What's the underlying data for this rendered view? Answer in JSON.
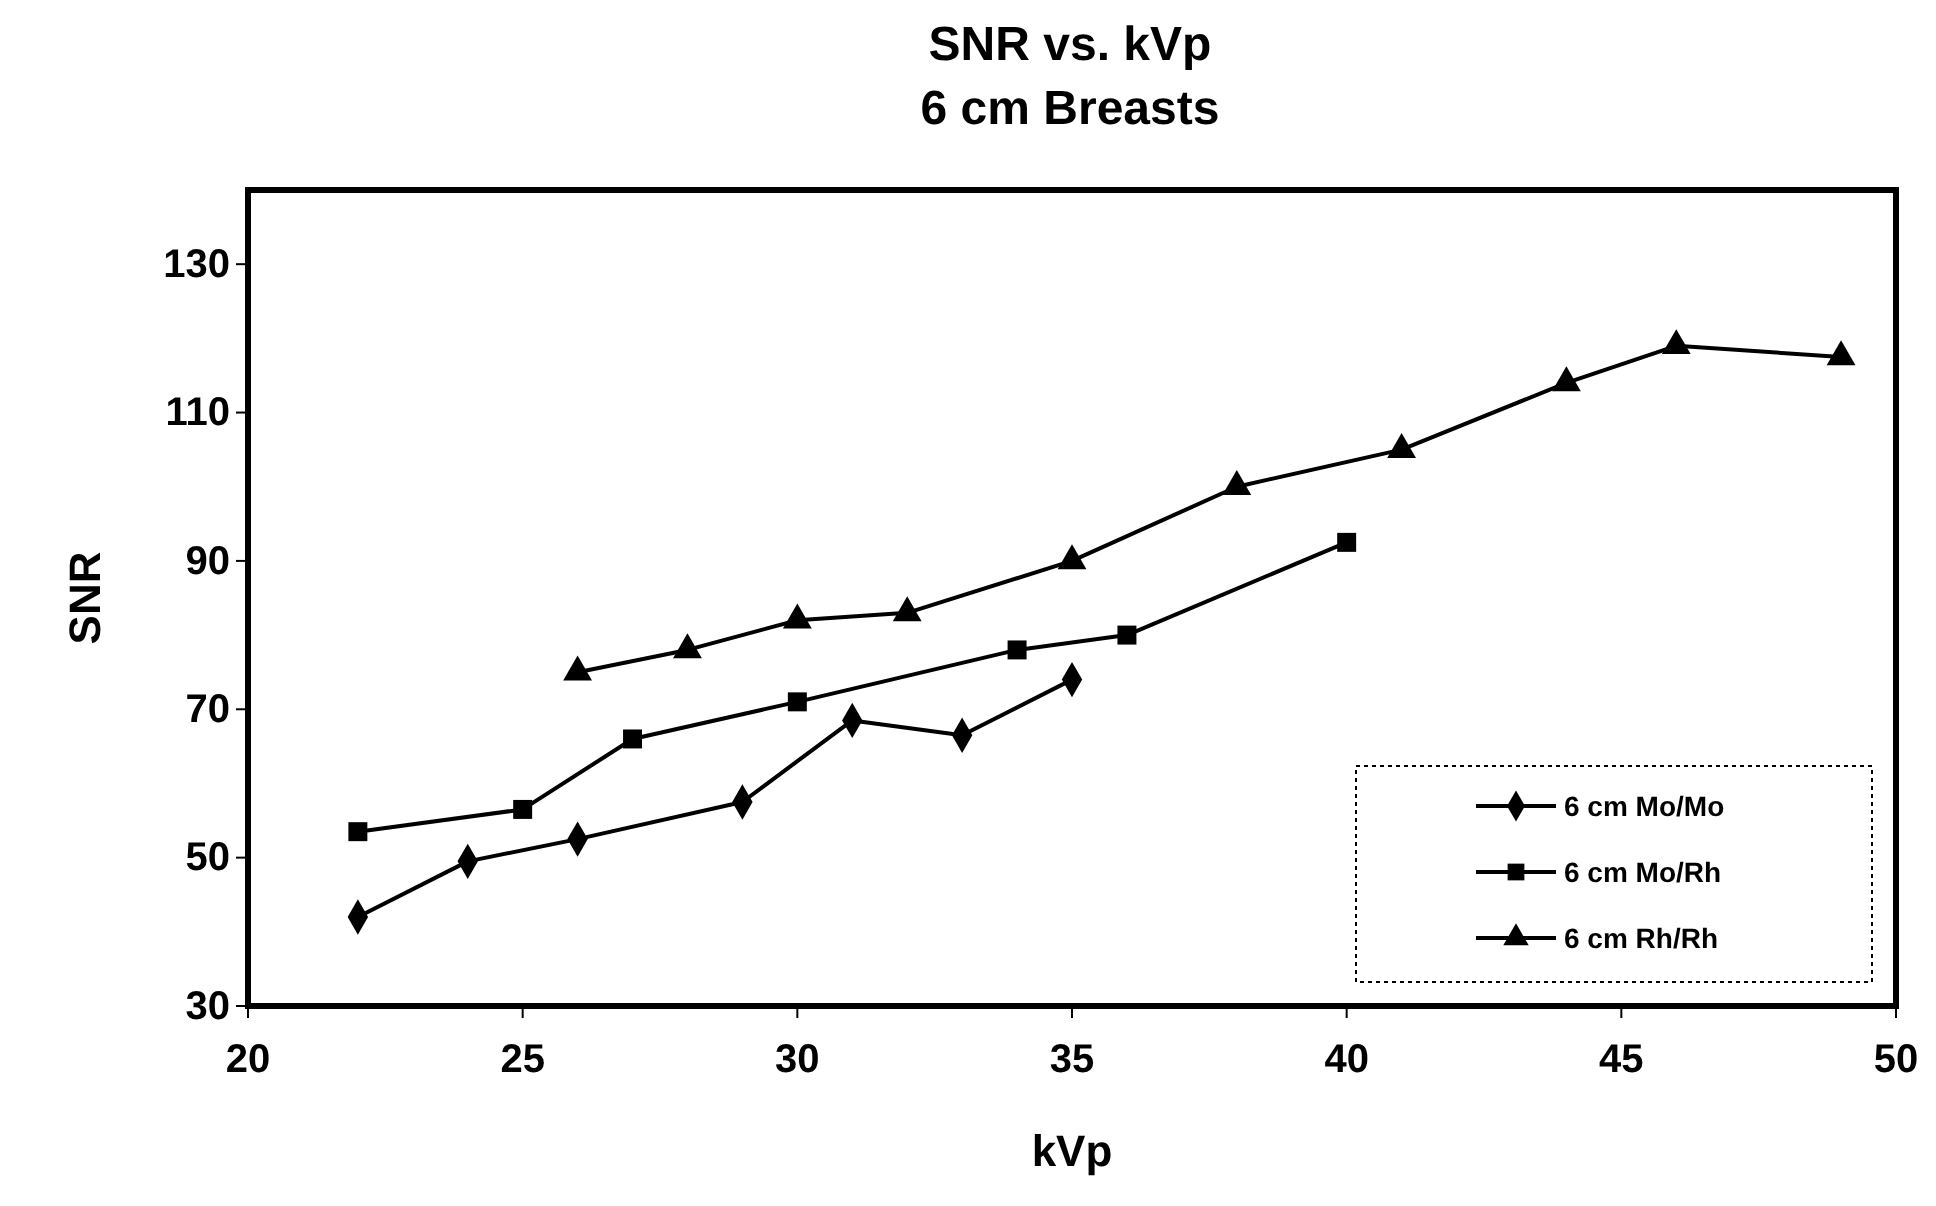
{
  "chart_data": {
    "type": "line",
    "title": "SNR vs. kVp",
    "subtitle": "6 cm Breasts",
    "xlabel": "kVp",
    "ylabel": "SNR",
    "xlim": [
      20,
      50
    ],
    "xticks": [
      20,
      25,
      30,
      35,
      40,
      45,
      50
    ],
    "ylim": [
      30,
      140
    ],
    "yticks": [
      30,
      50,
      70,
      90,
      110,
      130
    ],
    "grid": false,
    "legend": "bottom right",
    "line_style": "solid",
    "series": [
      {
        "name": "6 cm Mo/Mo",
        "color": "#000000",
        "marker": "diamond",
        "x": [
          22,
          24,
          26,
          29,
          31,
          33,
          35
        ],
        "values": [
          42,
          49.5,
          52.5,
          57.5,
          68.5,
          66.5,
          74
        ]
      },
      {
        "name": "6 cm Mo/Rh",
        "color": "#000000",
        "marker": "square",
        "x": [
          22,
          25,
          27,
          30,
          34,
          36,
          40
        ],
        "values": [
          53.5,
          56.5,
          66,
          71,
          78,
          80,
          92.5
        ]
      },
      {
        "name": "6 cm Rh/Rh",
        "color": "#000000",
        "marker": "triangle",
        "x": [
          26,
          28,
          30,
          32,
          35,
          38,
          41,
          44,
          46,
          49
        ],
        "values": [
          75,
          78,
          82,
          83,
          90,
          100,
          105,
          114,
          119,
          117.5
        ]
      }
    ]
  }
}
